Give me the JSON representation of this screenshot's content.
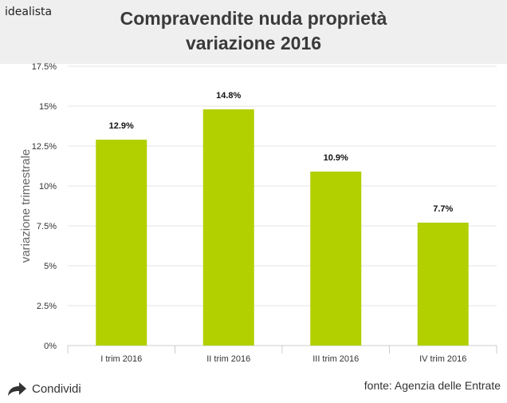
{
  "brand": {
    "name": "idealista"
  },
  "header": {
    "title_line1": "Compravendite nuda proprietà",
    "title_line2": "variazione 2016"
  },
  "footer": {
    "share_label": "Condividi",
    "source_text": "fonte: Agenzia delle Entrate"
  },
  "colors": {
    "bar": "#b2cf00",
    "grid": "#e4e4e4",
    "header_bg": "#efefef"
  },
  "icons": {
    "share": "share-arrow-icon"
  },
  "chart_data": {
    "type": "bar",
    "title": "Compravendite nuda proprietà variazione 2016",
    "ylabel": "variazione trimestrale",
    "xlabel": "",
    "categories": [
      "I trim 2016",
      "II trim 2016",
      "III trim 2016",
      "IV trim 2016"
    ],
    "values": [
      12.9,
      14.8,
      10.9,
      7.7
    ],
    "value_labels": [
      "12.9%",
      "14.8%",
      "10.9%",
      "7.7%"
    ],
    "ylim": [
      0,
      17.5
    ],
    "yticks": [
      0,
      2.5,
      5,
      7.5,
      10,
      12.5,
      15,
      17.5
    ],
    "ytick_labels": [
      "0%",
      "2.5%",
      "5%",
      "7.5%",
      "10%",
      "12.5%",
      "15%",
      "17.5%"
    ],
    "grid": true,
    "legend": "none"
  }
}
